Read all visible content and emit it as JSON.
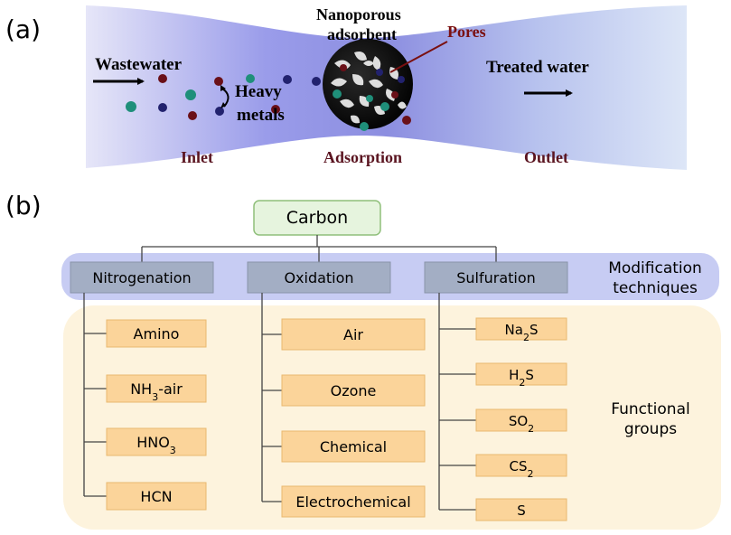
{
  "panel_a": {
    "label": "(a)",
    "wastewater": "Wastewater",
    "heavy_metals_line1": "Heavy",
    "heavy_metals_line2": "metals",
    "adsorbent_line1": "Nanoporous",
    "adsorbent_line2": "adsorbent",
    "pores": "Pores",
    "treated_water": "Treated water",
    "inlet": "Inlet",
    "adsorption": "Adsorption",
    "outlet": "Outlet"
  },
  "panel_b": {
    "label": "(b)",
    "root": "Carbon",
    "modification_label_line1": "Modification",
    "modification_label_line2": "techniques",
    "functional_label_line1": "Functional",
    "functional_label_line2": "groups",
    "techniques": [
      {
        "name": "Nitrogenation",
        "groups": [
          "Amino",
          "NH3-air",
          "HNO3",
          "HCN"
        ]
      },
      {
        "name": "Oxidation",
        "groups": [
          "Air",
          "Ozone",
          "Chemical",
          "Electrochemical"
        ]
      },
      {
        "name": "Sulfuration",
        "groups": [
          "Na2S",
          "H2S",
          "SO2",
          "CS2",
          "S"
        ]
      }
    ]
  },
  "colors": {
    "dark_red_text": "#5a1420",
    "pore_label": "#7a1010",
    "channel_blue": "#8c8ee0",
    "carbon_fill": "#e6f4de",
    "carbon_border": "#8fbf7a",
    "tech_fill": "#a3aec4",
    "tech_band": "#c7ccf3",
    "group_fill": "#fbd49a",
    "group_band": "#fdf3dd",
    "metal_teal": "#1f8f7a",
    "metal_navy": "#22226e",
    "metal_maroon": "#6a1018"
  }
}
